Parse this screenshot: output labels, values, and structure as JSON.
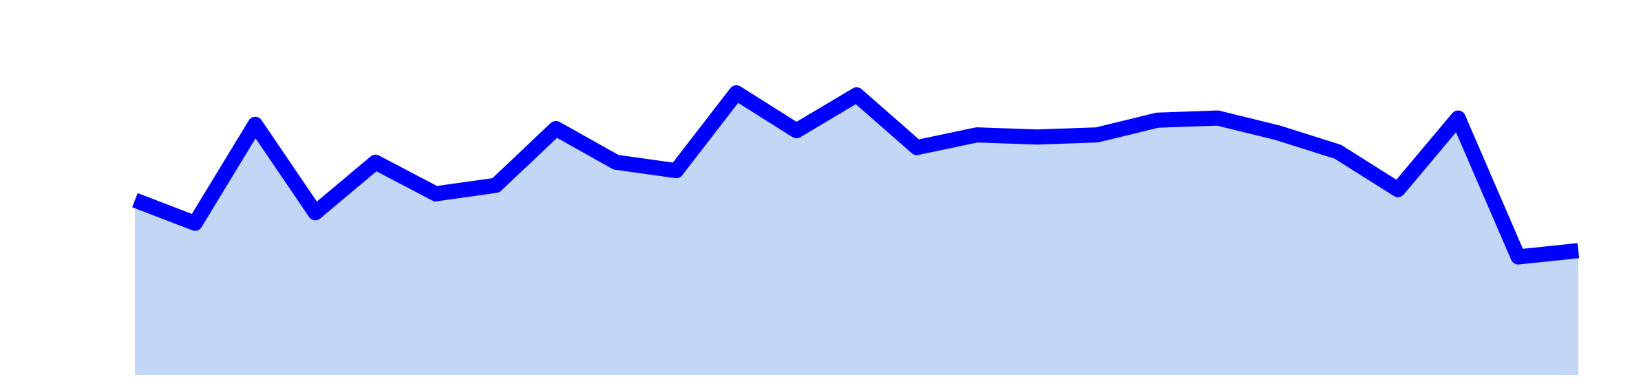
{
  "chart_data": {
    "type": "area",
    "x": [
      0,
      1,
      2,
      3,
      4,
      5,
      6,
      7,
      8,
      9,
      10,
      11,
      12,
      13,
      14,
      15,
      16,
      17,
      18,
      19,
      20,
      21,
      22,
      23,
      24
    ],
    "series": [
      {
        "values": [
          63,
          52,
          99,
          57,
          81,
          66,
          70,
          97,
          81,
          77,
          114,
          96,
          113,
          88,
          94,
          93,
          94,
          101,
          102,
          95,
          86,
          68,
          102,
          36,
          39
        ]
      }
    ],
    "xlim": [
      0,
      24
    ],
    "ylim": [
      -20,
      145
    ],
    "grid": false,
    "legend": "none",
    "colors": {
      "line": "#0000ff",
      "fill": "#c2d6f6"
    }
  }
}
